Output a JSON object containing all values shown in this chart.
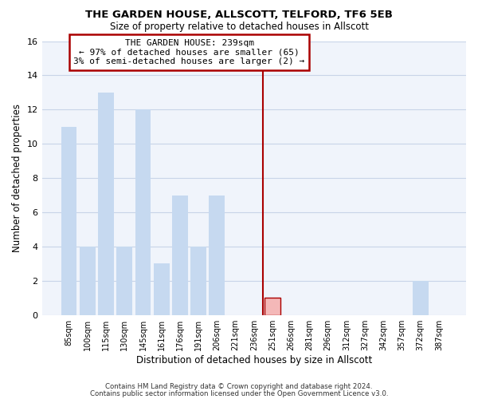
{
  "title": "THE GARDEN HOUSE, ALLSCOTT, TELFORD, TF6 5EB",
  "subtitle": "Size of property relative to detached houses in Allscott",
  "xlabel": "Distribution of detached houses by size in Allscott",
  "ylabel": "Number of detached properties",
  "bar_labels": [
    "85sqm",
    "100sqm",
    "115sqm",
    "130sqm",
    "145sqm",
    "161sqm",
    "176sqm",
    "191sqm",
    "206sqm",
    "221sqm",
    "236sqm",
    "251sqm",
    "266sqm",
    "281sqm",
    "296sqm",
    "312sqm",
    "327sqm",
    "342sqm",
    "357sqm",
    "372sqm",
    "387sqm"
  ],
  "bar_values": [
    11,
    4,
    13,
    4,
    12,
    3,
    7,
    4,
    7,
    0,
    0,
    1,
    0,
    0,
    0,
    0,
    0,
    0,
    0,
    2,
    0
  ],
  "bar_color": "#c6d9f0",
  "highlight_bar_index": 11,
  "highlight_bar_color": "#f4b8b8",
  "vline_x_index": 10.5,
  "vline_color": "#aa0000",
  "annotation_line1": "THE GARDEN HOUSE: 239sqm",
  "annotation_line2": "← 97% of detached houses are smaller (65)",
  "annotation_line3": "3% of semi-detached houses are larger (2) →",
  "annotation_box_color": "#ffffff",
  "annotation_box_edge": "#aa0000",
  "ylim": [
    0,
    16
  ],
  "yticks": [
    0,
    2,
    4,
    6,
    8,
    10,
    12,
    14,
    16
  ],
  "footer_line1": "Contains HM Land Registry data © Crown copyright and database right 2024.",
  "footer_line2": "Contains public sector information licensed under the Open Government Licence v3.0.",
  "bg_color": "#ffffff",
  "plot_bg_color": "#f0f4fb",
  "grid_color": "#c8d4e8"
}
